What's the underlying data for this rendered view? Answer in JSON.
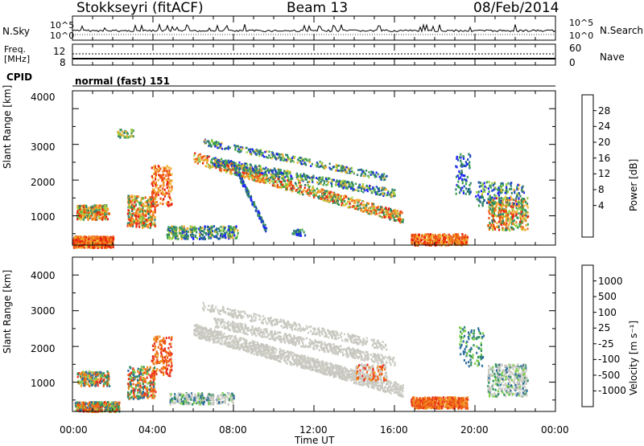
{
  "header": {
    "station": "Stokkseyri (fitACF)",
    "beam": "Beam 13",
    "date": "08/Feb/2014"
  },
  "noise_panel": {
    "left_label": "N.Sky",
    "right_label": "N.Search",
    "left_ticks": [
      "10^5",
      "10^0"
    ],
    "right_ticks": [
      "10^5",
      "10^0"
    ]
  },
  "freq_panel": {
    "label_line1": "Freq.",
    "label_line2": "[MHz]",
    "left_ticks": [
      "12",
      "8"
    ],
    "right_label": "Nave",
    "right_ticks": [
      "60",
      "0"
    ]
  },
  "cpid": {
    "label": "CPID",
    "value": "normal (fast) 151"
  },
  "chart_data": [
    {
      "type": "heatmap",
      "title": "",
      "ylabel": "Slant Range [km]",
      "xlabel": "",
      "ylim": [
        180,
        4500
      ],
      "yticks": [
        "4000",
        "3000",
        "2000",
        "1000"
      ],
      "colorbar": {
        "label": "Power [dB]",
        "ticks": [
          "28",
          "24",
          "20",
          "16",
          "12",
          "8",
          "4"
        ],
        "colors": [
          "#1f1fff",
          "#1f4fb8",
          "#2f7f6f",
          "#3fa050",
          "#9ad040",
          "#f0b030",
          "#f08020",
          "#ee5010",
          "#e82010"
        ]
      }
    },
    {
      "type": "heatmap",
      "title": "",
      "ylabel": "Slant Range [km]",
      "xlabel": "Time UT",
      "ylim": [
        180,
        4500
      ],
      "yticks": [
        "4000",
        "3000",
        "2000",
        "1000"
      ],
      "xticks": [
        "00:00",
        "04:00",
        "08:00",
        "12:00",
        "16:00",
        "20:00",
        "00:00"
      ],
      "colorbar": {
        "label": "Velocity [m s⁻¹]",
        "ticks": [
          "1000",
          "500",
          "100",
          "25",
          "-25",
          "-100",
          "-500",
          "-1000"
        ],
        "colors": [
          "#1f3fb0",
          "#2f6f9f",
          "#2f8f5f",
          "#7fcf4f",
          "#c8c8c0",
          "#f09020",
          "#ef6010",
          "#e83020",
          "#e81010"
        ]
      }
    }
  ]
}
